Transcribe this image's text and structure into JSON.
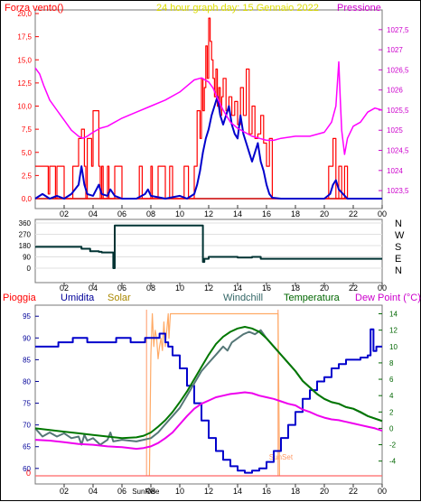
{
  "chart_data": [
    {
      "type": "line",
      "title": "24 hour graph day:  15 Gennaio 2022",
      "left_label": "Forza vento()",
      "right_label": "Pressione",
      "x_ticks": [
        "02",
        "04",
        "06",
        "08",
        "10",
        "12",
        "14",
        "16",
        "18",
        "20",
        "22",
        "00"
      ],
      "yleft_ticks": [
        "0,0",
        "2,5",
        "5,0",
        "7,5",
        "10,0",
        "12,5",
        "15,0",
        "17,5",
        "20,0"
      ],
      "yleft_lim": [
        0,
        20
      ],
      "yright_ticks": [
        "1023,5",
        "1024",
        "1024,5",
        "1025",
        "1025,5",
        "1026",
        "1026,5",
        "1027",
        "1027,5"
      ],
      "yright_lim": [
        1023.3,
        1027.9
      ],
      "x_range_hours": [
        0,
        24
      ],
      "series": [
        {
          "color": "#ff0000",
          "axis": "left",
          "x": [
            0,
            0.5,
            0.9,
            1.0,
            1.4,
            1.5,
            2.0,
            2.6,
            3.0,
            3.2,
            3.4,
            3.5,
            3.6,
            3.9,
            4.0,
            4.4,
            4.5,
            4.6,
            4.7,
            5.0,
            5.1,
            5.2,
            5.5,
            6.0,
            7.0,
            7.2,
            7.4,
            7.5,
            8.0,
            8.1,
            8.2,
            8.5,
            9.0,
            9.3,
            9.5,
            9.7,
            10.0,
            10.3,
            10.6,
            11.0,
            11.2,
            11.4,
            11.5,
            11.6,
            11.7,
            11.8,
            11.9,
            12.0,
            12.1,
            12.2,
            12.3,
            12.4,
            12.5,
            12.6,
            12.7,
            12.8,
            12.9,
            13.0,
            13.2,
            13.4,
            13.6,
            13.8,
            14.0,
            14.2,
            14.4,
            14.6,
            14.8,
            15.0,
            15.2,
            15.4,
            15.6,
            15.8,
            16.0,
            16.2,
            16.4,
            16.6,
            17.0,
            17.5,
            18.0,
            18.5,
            19.0,
            19.5,
            20.0,
            20.3,
            20.6,
            20.8,
            21.0,
            21.2,
            21.4,
            21.6,
            22.0,
            23.0,
            24.0
          ],
          "y": [
            3.5,
            3.5,
            0.5,
            3.5,
            0,
            3.5,
            0,
            3.5,
            6.5,
            7.5,
            3.5,
            0,
            6.5,
            3.5,
            9.5,
            3.5,
            0,
            3.5,
            0,
            3.5,
            0,
            0,
            3.5,
            0,
            0,
            3.5,
            0,
            0,
            3.5,
            0,
            0,
            3.5,
            0,
            3.5,
            0,
            0,
            0,
            3.5,
            0,
            3.5,
            9.5,
            6.5,
            13,
            9.5,
            12,
            16.5,
            13,
            19.5,
            17,
            15,
            13,
            11,
            14,
            10,
            12,
            9,
            11,
            13,
            9.5,
            11,
            9,
            10.5,
            8,
            12,
            9,
            14,
            7,
            10,
            6.5,
            7,
            9,
            6,
            3.5,
            6.5,
            0,
            0,
            0,
            0,
            0,
            0,
            0,
            0,
            0,
            3.5,
            6.5,
            0,
            3.5,
            0,
            3.5,
            0,
            0,
            0,
            0
          ]
        },
        {
          "color": "#0000cc",
          "axis": "left",
          "x": [
            0,
            0.5,
            1.0,
            1.5,
            2.0,
            2.5,
            3.0,
            3.2,
            3.4,
            3.6,
            4.0,
            4.4,
            4.6,
            5.0,
            5.2,
            5.5,
            6.0,
            7.0,
            7.6,
            7.8,
            8.0,
            9.0,
            10.0,
            10.5,
            11.0,
            11.2,
            11.4,
            11.6,
            11.8,
            12.0,
            12.2,
            12.4,
            12.6,
            12.8,
            13.0,
            13.2,
            13.4,
            13.6,
            13.8,
            14.0,
            14.2,
            14.4,
            14.6,
            14.8,
            15.0,
            15.2,
            15.4,
            15.6,
            15.8,
            16.0,
            16.2,
            16.4,
            17.0,
            18.0,
            19.0,
            20.0,
            20.4,
            20.6,
            20.8,
            21.0,
            21.3,
            21.6,
            22.0,
            23.0,
            24.0
          ],
          "y": [
            0,
            0.5,
            0,
            0.3,
            0,
            0.5,
            1.5,
            3.5,
            1.5,
            0.5,
            0.3,
            1.5,
            0.5,
            0.3,
            1,
            0.3,
            0,
            0,
            0.5,
            1,
            0.3,
            0,
            0.3,
            0,
            0.5,
            1.5,
            3,
            5,
            6.5,
            7.5,
            9,
            10,
            11,
            9,
            8,
            9,
            10,
            8,
            7,
            6.5,
            9,
            7,
            6,
            5,
            4,
            5,
            6,
            4,
            3,
            1.5,
            0.5,
            0.1,
            0,
            0,
            0,
            0,
            0.5,
            1.5,
            2,
            1,
            0.5,
            0,
            0,
            0,
            0
          ]
        },
        {
          "color": "#ff00ff",
          "axis": "right",
          "x": [
            0,
            0.3,
            0.6,
            1.0,
            1.5,
            2.0,
            2.5,
            3.0,
            3.3,
            3.6,
            4.0,
            4.5,
            5.0,
            5.5,
            6.0,
            7.0,
            8.0,
            9.0,
            10.0,
            10.5,
            11.0,
            11.5,
            12.0,
            12.3,
            12.6,
            13.0,
            13.5,
            14.0,
            14.5,
            15.0,
            15.5,
            16.0,
            16.5,
            17.0,
            18.0,
            19.0,
            20.0,
            20.5,
            20.8,
            21.0,
            21.1,
            21.2,
            21.4,
            21.6,
            22.0,
            22.5,
            23.0,
            23.5,
            24.0
          ],
          "y": [
            1026.55,
            1026.4,
            1026.1,
            1025.75,
            1025.5,
            1025.25,
            1025.0,
            1024.85,
            1024.8,
            1024.85,
            1024.95,
            1025.05,
            1025.1,
            1025.2,
            1025.3,
            1025.45,
            1025.6,
            1025.75,
            1025.95,
            1026.1,
            1026.25,
            1026.3,
            1026.2,
            1026.05,
            1025.8,
            1025.5,
            1025.2,
            1025.05,
            1024.95,
            1024.85,
            1024.8,
            1024.75,
            1024.75,
            1024.8,
            1024.85,
            1024.85,
            1024.95,
            1025.2,
            1025.6,
            1026.7,
            1025.8,
            1025.0,
            1024.4,
            1024.8,
            1025.1,
            1025.2,
            1025.45,
            1025.55,
            1025.5
          ]
        }
      ]
    },
    {
      "type": "line",
      "x_ticks": [
        "02",
        "04",
        "06",
        "08",
        "10",
        "12",
        "14",
        "16",
        "18",
        "20",
        "22",
        "00"
      ],
      "yleft_ticks": [
        "0",
        "90",
        "180",
        "270",
        "360"
      ],
      "yleft_lim": [
        0,
        360
      ],
      "right_ticks": [
        "N",
        "W",
        "S",
        "E",
        "N"
      ],
      "x_range_hours": [
        0,
        24
      ],
      "series": [
        {
          "color": "#003333",
          "x": [
            0,
            3.0,
            3.2,
            3.8,
            4.4,
            4.6,
            5.3,
            5.4,
            5.5,
            11.5,
            11.6,
            11.7,
            12.0,
            13.0,
            14.0,
            15.0,
            15.6,
            16.0,
            17.0,
            24.0
          ],
          "y": [
            170,
            170,
            155,
            135,
            130,
            125,
            125,
            0,
            340,
            340,
            50,
            75,
            90,
            90,
            85,
            90,
            75,
            75,
            75,
            75
          ]
        }
      ]
    },
    {
      "type": "line",
      "labels": {
        "pioggia": "Pioggia",
        "umidita": "Umidita",
        "solar": "Solar",
        "windchill": "Windchill",
        "temperatura": "Temperatura",
        "dew": "Dew Point (°C)"
      },
      "label_colors": {
        "pioggia": "#ff0000",
        "umidita": "#000099",
        "solar": "#aa8800",
        "windchill": "#336666",
        "temperatura": "#006600",
        "dew": "#cc00cc"
      },
      "x_ticks": [
        "02",
        "04",
        "06",
        "08",
        "10",
        "12",
        "14",
        "16",
        "18",
        "20",
        "22",
        "00"
      ],
      "yleft_ticks": [
        "60",
        "65",
        "70",
        "75",
        "80",
        "85",
        "90",
        "95"
      ],
      "yleft_lim": [
        58.3,
        96.5
      ],
      "yright_ticks": [
        "-4",
        "-2",
        "0",
        "2",
        "4",
        "6",
        "8",
        "10",
        "12",
        "14"
      ],
      "yright_lim": [
        -5.8,
        14.5
      ],
      "rain_axis_zero": "0",
      "sunrise_label": "SunRise",
      "sunset_label": "SunSet",
      "sunrise_hour": 7.7,
      "sunset_hour": 16.8,
      "x_range_hours": [
        0,
        24
      ],
      "series": [
        {
          "name": "Umidita",
          "color": "#0000cc",
          "axis": "left",
          "x": [
            0,
            1.5,
            1.6,
            2.5,
            2.6,
            3.5,
            3.6,
            5.5,
            5.6,
            6.5,
            6.6,
            7.5,
            7.6,
            8.5,
            8.6,
            9.0,
            9.2,
            9.5,
            10.0,
            10.5,
            11.0,
            11.5,
            12.0,
            12.5,
            13.0,
            13.5,
            14.0,
            14.5,
            15.0,
            15.5,
            16.0,
            16.5,
            17.0,
            17.5,
            18.0,
            18.5,
            19.0,
            19.5,
            20.0,
            20.5,
            21.0,
            21.5,
            22.0,
            22.5,
            23.0,
            23.2,
            23.4,
            23.6,
            24.0
          ],
          "y": [
            88,
            88,
            89,
            89,
            90,
            90,
            89,
            89,
            90,
            90,
            89,
            89,
            90,
            90,
            91,
            89,
            88,
            86,
            83,
            79,
            75,
            71,
            67,
            64,
            62,
            60.5,
            59.5,
            59,
            59.5,
            60,
            61.5,
            64,
            67,
            70,
            73,
            76,
            78,
            80,
            81,
            83,
            84,
            85,
            85,
            85.5,
            86,
            92,
            87,
            88,
            88
          ]
        },
        {
          "name": "Temperatura",
          "color": "#007700",
          "axis": "right",
          "x": [
            0,
            1,
            2,
            3,
            4,
            5,
            6,
            7,
            7.5,
            8,
            8.5,
            9,
            9.5,
            10,
            10.5,
            11,
            11.5,
            12,
            12.5,
            13,
            13.5,
            14,
            14.5,
            15,
            15.5,
            16,
            16.5,
            17,
            17.5,
            18,
            18.5,
            19,
            19.5,
            20,
            20.5,
            21,
            21.5,
            22,
            22.5,
            23,
            23.5,
            24
          ],
          "y": [
            0,
            -0.2,
            -0.4,
            -0.6,
            -0.8,
            -1,
            -1.2,
            -1.1,
            -0.9,
            -0.5,
            0.2,
            1,
            2,
            3.2,
            4.5,
            6,
            7.5,
            9,
            10.3,
            11.2,
            11.8,
            12.2,
            12.4,
            12.2,
            11.8,
            11,
            10,
            9,
            8,
            7,
            5.8,
            5,
            4.2,
            3.6,
            3.2,
            3,
            2.6,
            2.4,
            2,
            1.5,
            1.2,
            0.9
          ]
        },
        {
          "name": "Windchill",
          "color": "#557777",
          "axis": "right",
          "x": [
            0,
            0.5,
            1,
            1.5,
            2,
            2.5,
            3,
            3.2,
            3.4,
            3.6,
            4,
            4.5,
            5,
            5.2,
            5.4,
            6,
            7,
            8,
            8.5,
            9,
            9.5,
            10,
            10.5,
            11,
            11.5,
            12,
            12.5,
            13,
            13.3,
            13.6,
            14,
            14.4,
            14.8,
            15.2,
            15.6,
            16,
            16.5,
            17,
            17.5,
            18,
            18.5,
            19,
            19.5,
            20,
            20.5,
            21,
            21.5,
            22,
            23,
            24
          ],
          "y": [
            0,
            -1,
            -0.5,
            -1,
            -0.6,
            -1.2,
            -1,
            -2,
            -0.8,
            -1.5,
            -1.2,
            -2,
            -1.4,
            -0.5,
            -1.6,
            -1.4,
            -1.6,
            -1.2,
            -0.5,
            0.5,
            1.5,
            2.5,
            4,
            5.5,
            7,
            8,
            9,
            10,
            9.5,
            10.5,
            11,
            11.5,
            11.8,
            11.5,
            12,
            11,
            10,
            9,
            8,
            7,
            5.8,
            5,
            4.2,
            3.6,
            3.2,
            3,
            2.6,
            2.4,
            1.5,
            0.9
          ]
        },
        {
          "name": "Dew Point",
          "color": "#ee00ee",
          "axis": "right",
          "x": [
            0,
            1,
            2,
            3,
            4,
            5,
            6,
            7,
            7.5,
            8,
            8.5,
            9,
            9.5,
            10,
            10.5,
            11,
            11.5,
            12,
            12.5,
            13,
            13.5,
            14,
            14.5,
            15,
            15.5,
            16,
            16.5,
            17,
            17.5,
            18,
            18.5,
            19,
            19.5,
            20,
            20.5,
            21,
            21.5,
            22,
            22.5,
            23,
            23.5,
            24
          ],
          "y": [
            -1.4,
            -1.5,
            -1.7,
            -1.9,
            -2,
            -2.2,
            -2.3,
            -2.5,
            -2.4,
            -2.2,
            -1.8,
            -1.2,
            -0.5,
            0.5,
            1.5,
            2.4,
            3,
            3.4,
            3.8,
            4,
            4.2,
            4.3,
            4.4,
            4.3,
            4,
            3.8,
            3.6,
            3.3,
            3,
            2.8,
            2.3,
            2,
            1.6,
            1.3,
            1.1,
            1,
            0.8,
            0.6,
            0.4,
            0.2,
            0,
            -0.3
          ]
        },
        {
          "name": "Solar",
          "color": "#ffaa66",
          "axis": "right",
          "x": [
            7.9,
            8.0,
            8.1,
            8.2,
            8.3,
            8.4,
            8.5,
            8.6,
            8.7,
            8.8,
            8.9,
            9.0,
            9.1,
            9.2,
            9.25,
            9.3,
            9.35,
            9.4,
            9.5,
            9.6,
            9.7,
            9.8,
            10,
            11,
            12,
            13,
            14,
            15,
            16,
            16.5,
            16.8,
            16.9
          ],
          "y": [
            -5.8,
            9,
            14,
            10,
            12,
            11,
            8.5,
            10,
            11,
            9.5,
            13,
            10,
            12,
            14,
            11,
            12.5,
            14,
            14,
            14,
            14,
            14,
            14,
            14,
            14,
            14,
            14,
            14,
            14,
            14,
            14,
            14,
            -5.8
          ]
        }
      ]
    }
  ]
}
